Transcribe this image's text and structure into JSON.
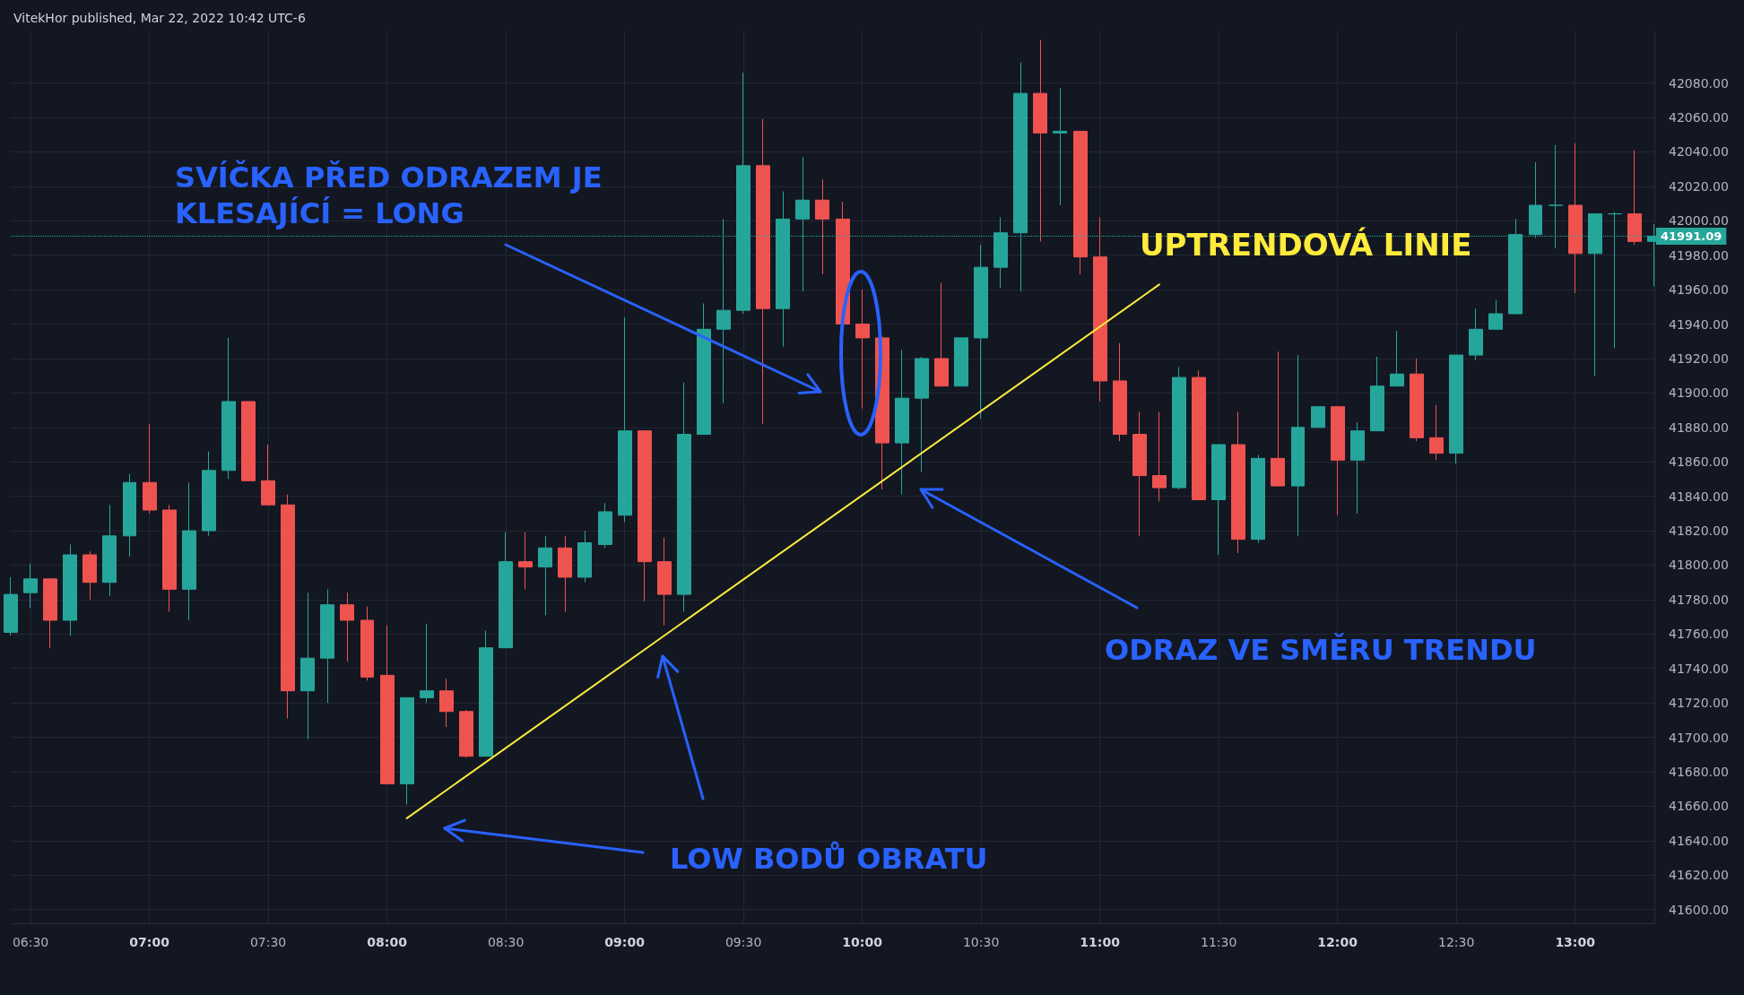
{
  "chart_data": {
    "type": "candlestick",
    "title": "VitekHor published, Mar 22, 2022 10:42 UTC-6",
    "annotations": [
      "SVÍČKA PŘED ODRAZEM JE\nKLESAJÍCÍ = LONG",
      "ODRAZ VE SMĚRU TRENDU",
      "LOW BODŮ OBRATU"
    ],
    "xlim": [
      "2022-03-22T06:25",
      "2022-03-22T13:20"
    ],
    "xticks": [
      {
        "value": "2022-03-22T06:30",
        "label": "06:30"
      },
      {
        "value": "2022-03-22T07:00",
        "label": "07:00"
      },
      {
        "value": "2022-03-22T07:30",
        "label": "07:30"
      },
      {
        "value": "2022-03-22T08:00",
        "label": "08:00"
      },
      {
        "value": "2022-03-22T08:30",
        "label": "08:30"
      },
      {
        "value": "2022-03-22T09:00",
        "label": "09:00"
      },
      {
        "value": "2022-03-22T09:30",
        "label": "09:30"
      },
      {
        "value": "2022-03-22T10:00",
        "label": "10:00"
      },
      {
        "value": "2022-03-22T10:30",
        "label": "10:30"
      },
      {
        "value": "2022-03-22T11:00",
        "label": "11:00"
      },
      {
        "value": "2022-03-22T11:30",
        "label": "11:30"
      },
      {
        "value": "2022-03-22T12:00",
        "label": "12:00"
      },
      {
        "value": "2022-03-22T12:30",
        "label": "12:30"
      },
      {
        "value": "2022-03-22T13:00",
        "label": "13:00"
      }
    ],
    "ylim": [
      41592,
      42110
    ],
    "yticks": [
      {
        "value": 41600,
        "label": "41600.00"
      },
      {
        "value": 41620,
        "label": "41620.00"
      },
      {
        "value": 41640,
        "label": "41640.00"
      },
      {
        "value": 41660,
        "label": "41660.00"
      },
      {
        "value": 41680,
        "label": "41680.00"
      },
      {
        "value": 41700,
        "label": "41700.00"
      },
      {
        "value": 41720,
        "label": "41720.00"
      },
      {
        "value": 41740,
        "label": "41740.00"
      },
      {
        "value": 41760,
        "label": "41760.00"
      },
      {
        "value": 41780,
        "label": "41780.00"
      },
      {
        "value": 41800,
        "label": "41800.00"
      },
      {
        "value": 41820,
        "label": "41820.00"
      },
      {
        "value": 41840,
        "label": "41840.00"
      },
      {
        "value": 41860,
        "label": "41860.00"
      },
      {
        "value": 41880,
        "label": "41880.00"
      },
      {
        "value": 41900,
        "label": "41900.00"
      },
      {
        "value": 41920,
        "label": "41920.00"
      },
      {
        "value": 41940,
        "label": "41940.00"
      },
      {
        "value": 41960,
        "label": "41960.00"
      },
      {
        "value": 41980,
        "label": "41980.00"
      },
      {
        "value": 42000,
        "label": "42000.00"
      },
      {
        "value": 42020,
        "label": "42020.00"
      },
      {
        "value": 42040,
        "label": "42040.00"
      },
      {
        "value": 42060,
        "label": "42060.00"
      },
      {
        "value": 42080,
        "label": "42080.00"
      }
    ],
    "grid": true,
    "ref_lines": [
      {
        "axis": "y",
        "value": 41991.09,
        "label": "41991.09",
        "color": "#26a69a",
        "line_style": "dotted"
      }
    ],
    "series": [
      {
        "type": "candlestick",
        "x": [
          "2022-03-22T06:25",
          "2022-03-22T06:30",
          "2022-03-22T06:35",
          "2022-03-22T06:40",
          "2022-03-22T06:45",
          "2022-03-22T06:50",
          "2022-03-22T06:55",
          "2022-03-22T07:00",
          "2022-03-22T07:05",
          "2022-03-22T07:10",
          "2022-03-22T07:15",
          "2022-03-22T07:20",
          "2022-03-22T07:25",
          "2022-03-22T07:30",
          "2022-03-22T07:35",
          "2022-03-22T07:40",
          "2022-03-22T07:45",
          "2022-03-22T07:50",
          "2022-03-22T07:55",
          "2022-03-22T08:00",
          "2022-03-22T08:05",
          "2022-03-22T08:10",
          "2022-03-22T08:15",
          "2022-03-22T08:20",
          "2022-03-22T08:25",
          "2022-03-22T08:30",
          "2022-03-22T08:35",
          "2022-03-22T08:40",
          "2022-03-22T08:45",
          "2022-03-22T08:50",
          "2022-03-22T08:55",
          "2022-03-22T09:00",
          "2022-03-22T09:05",
          "2022-03-22T09:10",
          "2022-03-22T09:15",
          "2022-03-22T09:20",
          "2022-03-22T09:25",
          "2022-03-22T09:30",
          "2022-03-22T09:35",
          "2022-03-22T09:40",
          "2022-03-22T09:45",
          "2022-03-22T09:50",
          "2022-03-22T09:55",
          "2022-03-22T10:00",
          "2022-03-22T10:05",
          "2022-03-22T10:10",
          "2022-03-22T10:15",
          "2022-03-22T10:20",
          "2022-03-22T10:25",
          "2022-03-22T10:30",
          "2022-03-22T10:35",
          "2022-03-22T10:40",
          "2022-03-22T10:45",
          "2022-03-22T10:50",
          "2022-03-22T10:55",
          "2022-03-22T11:00",
          "2022-03-22T11:05",
          "2022-03-22T11:10",
          "2022-03-22T11:15",
          "2022-03-22T11:20",
          "2022-03-22T11:25",
          "2022-03-22T11:30",
          "2022-03-22T11:35",
          "2022-03-22T11:40",
          "2022-03-22T11:45",
          "2022-03-22T11:50",
          "2022-03-22T11:55",
          "2022-03-22T12:00",
          "2022-03-22T12:05",
          "2022-03-22T12:10",
          "2022-03-22T12:15",
          "2022-03-22T12:20",
          "2022-03-22T12:25",
          "2022-03-22T12:30",
          "2022-03-22T12:35",
          "2022-03-22T12:40",
          "2022-03-22T12:45",
          "2022-03-22T12:50",
          "2022-03-22T12:55",
          "2022-03-22T13:00",
          "2022-03-22T13:05",
          "2022-03-22T13:10",
          "2022-03-22T13:15",
          "2022-03-22T13:20"
        ],
        "ohlc": [
          [
            41761,
            41793,
            41759,
            41783
          ],
          [
            41784,
            41801,
            41775,
            41792
          ],
          [
            41792,
            41792,
            41752,
            41768
          ],
          [
            41768,
            41812,
            41759,
            41806
          ],
          [
            41806,
            41808,
            41780,
            41790
          ],
          [
            41790,
            41835,
            41782,
            41817
          ],
          [
            41817,
            41853,
            41805,
            41848
          ],
          [
            41848,
            41882,
            41830,
            41832
          ],
          [
            41832,
            41835,
            41773,
            41786
          ],
          [
            41786,
            41848,
            41768,
            41820
          ],
          [
            41820,
            41866,
            41817,
            41855
          ],
          [
            41855,
            41932,
            41850,
            41895
          ],
          [
            41895,
            41895,
            41849,
            41849
          ],
          [
            41849,
            41870,
            41835,
            41835
          ],
          [
            41835,
            41841,
            41711,
            41727
          ],
          [
            41727,
            41784,
            41699,
            41746
          ],
          [
            41746,
            41786,
            41720,
            41777
          ],
          [
            41777,
            41784,
            41744,
            41768
          ],
          [
            41768,
            41776,
            41733,
            41735
          ],
          [
            41736,
            41765,
            41673,
            41673
          ],
          [
            41673,
            41723,
            41661,
            41723
          ],
          [
            41723,
            41766,
            41720,
            41727
          ],
          [
            41727,
            41734,
            41706,
            41715
          ],
          [
            41715,
            41716,
            41688,
            41689
          ],
          [
            41689,
            41762,
            41689,
            41752
          ],
          [
            41752,
            41819,
            41752,
            41802
          ],
          [
            41802,
            41819,
            41786,
            41799
          ],
          [
            41799,
            41817,
            41771,
            41810
          ],
          [
            41810,
            41817,
            41773,
            41793
          ],
          [
            41793,
            41820,
            41790,
            41813
          ],
          [
            41812,
            41836,
            41810,
            41831
          ],
          [
            41829,
            41944,
            41825,
            41878
          ],
          [
            41878,
            41878,
            41779,
            41802
          ],
          [
            41802,
            41816,
            41765,
            41783
          ],
          [
            41783,
            41906,
            41773,
            41876
          ],
          [
            41876,
            41952,
            41876,
            41937
          ],
          [
            41937,
            42001,
            41894,
            41948
          ],
          [
            41948,
            42086,
            41946,
            42032
          ],
          [
            42032,
            42059,
            41882,
            41949
          ],
          [
            41949,
            42017,
            41927,
            42001
          ],
          [
            42001,
            42037,
            41959,
            42012
          ],
          [
            42012,
            42024,
            41969,
            42001
          ],
          [
            42001,
            42011,
            41940,
            41940
          ],
          [
            41940,
            41960,
            41891,
            41932
          ],
          [
            41932,
            41933,
            41844,
            41871
          ],
          [
            41871,
            41925,
            41841,
            41897
          ],
          [
            41897,
            41921,
            41854,
            41920
          ],
          [
            41920,
            41964,
            41904,
            41904
          ],
          [
            41904,
            41932,
            41904,
            41932
          ],
          [
            41932,
            41986,
            41885,
            41973
          ],
          [
            41973,
            42002,
            41961,
            41993
          ],
          [
            41993,
            42092,
            41959,
            42074
          ],
          [
            42074,
            42105,
            41988,
            42051
          ],
          [
            42051,
            42077,
            42009,
            42052
          ],
          [
            42052,
            42052,
            41969,
            41979
          ],
          [
            41979,
            42002,
            41895,
            41907
          ],
          [
            41907,
            41929,
            41872,
            41876
          ],
          [
            41876,
            41889,
            41817,
            41852
          ],
          [
            41852,
            41889,
            41837,
            41845
          ],
          [
            41845,
            41915,
            41844,
            41909
          ],
          [
            41909,
            41913,
            41838,
            41838
          ],
          [
            41838,
            41870,
            41806,
            41870
          ],
          [
            41870,
            41889,
            41807,
            41815
          ],
          [
            41815,
            41864,
            41813,
            41862
          ],
          [
            41862,
            41924,
            41846,
            41846
          ],
          [
            41846,
            41922,
            41817,
            41880
          ],
          [
            41880,
            41892,
            41880,
            41892
          ],
          [
            41892,
            41892,
            41829,
            41861
          ],
          [
            41861,
            41883,
            41830,
            41878
          ],
          [
            41878,
            41921,
            41878,
            41904
          ],
          [
            41904,
            41936,
            41904,
            41911
          ],
          [
            41911,
            41920,
            41872,
            41874
          ],
          [
            41874,
            41893,
            41861,
            41865
          ],
          [
            41865,
            41922,
            41859,
            41922
          ],
          [
            41922,
            41949,
            41919,
            41937
          ],
          [
            41937,
            41954,
            41937,
            41946
          ],
          [
            41946,
            42001,
            41946,
            41992
          ],
          [
            41992,
            42034,
            41990,
            42009
          ],
          [
            42009,
            42044,
            41984,
            42009
          ],
          [
            42009,
            42045,
            41958,
            41981
          ],
          [
            41981,
            42004,
            41910,
            42004
          ],
          [
            42004,
            42005,
            41926,
            42004
          ],
          [
            42004,
            42041,
            41986,
            41988
          ],
          [
            41988,
            41998,
            41962,
            41991.09
          ]
        ],
        "colors": [
          "#26a69a",
          "#26a69a",
          "#ef5350",
          "#26a69a",
          "#ef5350",
          "#26a69a",
          "#26a69a",
          "#ef5350",
          "#ef5350",
          "#26a69a",
          "#26a69a",
          "#26a69a",
          "#ef5350",
          "#ef5350",
          "#ef5350",
          "#26a69a",
          "#26a69a",
          "#ef5350",
          "#ef5350",
          "#ef5350",
          "#26a69a",
          "#26a69a",
          "#ef5350",
          "#ef5350",
          "#26a69a",
          "#26a69a",
          "#ef5350",
          "#26a69a",
          "#ef5350",
          "#26a69a",
          "#26a69a",
          "#26a69a",
          "#ef5350",
          "#ef5350",
          "#26a69a",
          "#26a69a",
          "#26a69a",
          "#26a69a",
          "#ef5350",
          "#26a69a",
          "#26a69a",
          "#ef5350",
          "#ef5350",
          "#ef5350",
          "#ef5350",
          "#26a69a",
          "#26a69a",
          "#ef5350",
          "#26a69a",
          "#26a69a",
          "#26a69a",
          "#26a69a",
          "#ef5350",
          "#26a69a",
          "#ef5350",
          "#ef5350",
          "#ef5350",
          "#ef5350",
          "#ef5350",
          "#26a69a",
          "#ef5350",
          "#26a69a",
          "#ef5350",
          "#26a69a",
          "#ef5350",
          "#26a69a",
          "#26a69a",
          "#ef5350",
          "#26a69a",
          "#26a69a",
          "#26a69a",
          "#ef5350",
          "#ef5350",
          "#26a69a",
          "#26a69a",
          "#26a69a",
          "#26a69a",
          "#26a69a",
          "#26a69a",
          "#ef5350",
          "#26a69a",
          "#26a69a",
          "#ef5350",
          "#26a69a"
        ]
      },
      {
        "type": "line",
        "name": "UPTRENDOVÁ LINIE",
        "color": "#ffeb3b",
        "x": [
          "2022-03-22T08:05",
          "2022-03-22T11:15"
        ],
        "values": [
          41653,
          41963
        ]
      }
    ]
  }
}
